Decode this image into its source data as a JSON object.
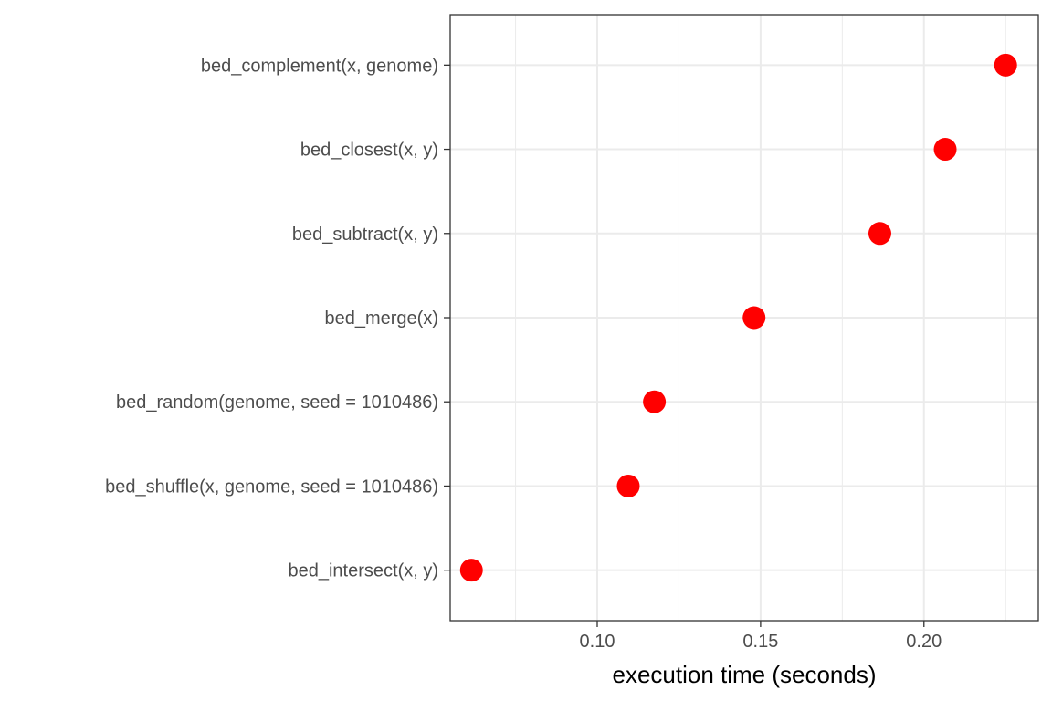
{
  "chart_data": {
    "type": "scatter",
    "title": "",
    "xlabel": "execution time (seconds)",
    "ylabel": "",
    "xlim": [
      0.055,
      0.235
    ],
    "x_ticks": [
      0.1,
      0.15,
      0.2
    ],
    "x_tick_labels": [
      "0.10",
      "0.15",
      "0.20"
    ],
    "x_minor_ticks": [
      0.075,
      0.125,
      0.175,
      0.225
    ],
    "grid": true,
    "legend": "none",
    "point_color": "#ff0000",
    "categories": [
      "bed_complement(x, genome)",
      "bed_closest(x, y)",
      "bed_subtract(x, y)",
      "bed_merge(x)",
      "bed_random(genome, seed = 1010486)",
      "bed_shuffle(x, genome, seed = 1010486)",
      "bed_intersect(x, y)"
    ],
    "values": [
      0.225,
      0.2065,
      0.1865,
      0.148,
      0.1175,
      0.1095,
      0.0615
    ]
  }
}
